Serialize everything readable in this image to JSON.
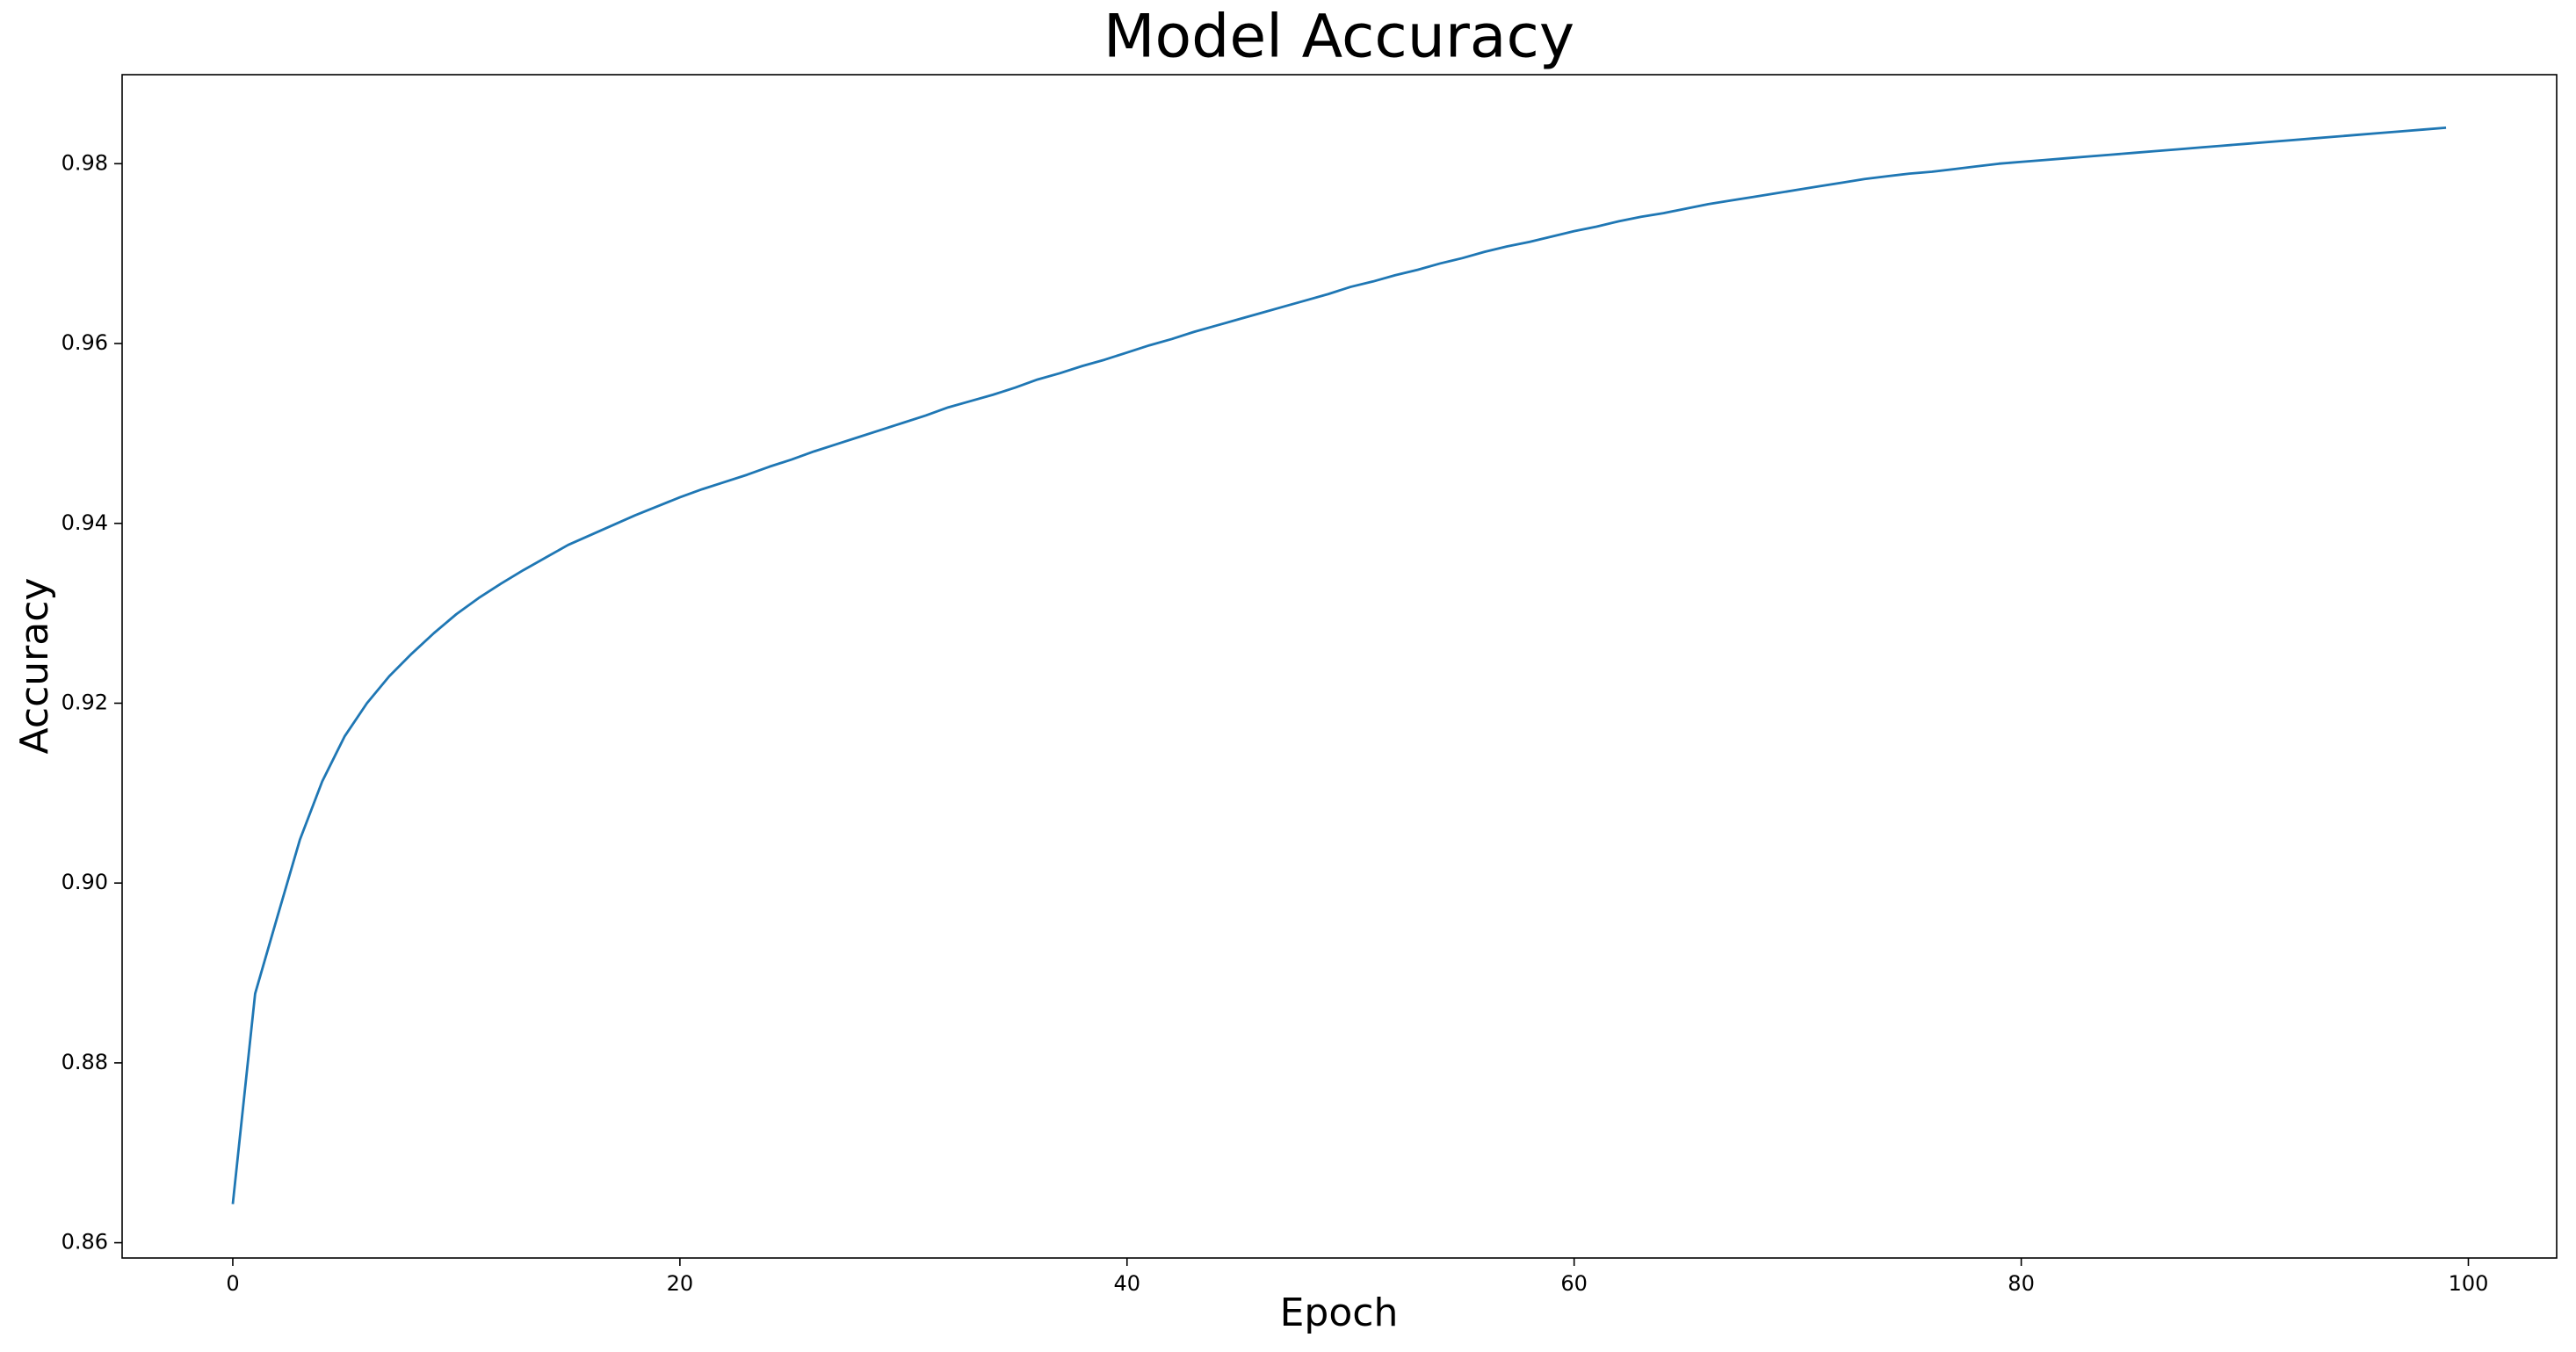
{
  "chart_data": {
    "type": "line",
    "title": "Model Accuracy",
    "xlabel": "Epoch",
    "ylabel": "Accuracy",
    "x": [
      0,
      1,
      2,
      3,
      4,
      5,
      6,
      7,
      8,
      9,
      10,
      11,
      12,
      13,
      14,
      15,
      16,
      17,
      18,
      19,
      20,
      21,
      22,
      23,
      24,
      25,
      26,
      27,
      28,
      29,
      30,
      31,
      32,
      33,
      34,
      35,
      36,
      37,
      38,
      39,
      40,
      41,
      42,
      43,
      44,
      45,
      46,
      47,
      48,
      49,
      50,
      51,
      52,
      53,
      54,
      55,
      56,
      57,
      58,
      59,
      60,
      61,
      62,
      63,
      64,
      65,
      66,
      67,
      68,
      69,
      70,
      71,
      72,
      73,
      74,
      75,
      76,
      77,
      78,
      79,
      80,
      81,
      82,
      83,
      84,
      85,
      86,
      87,
      88,
      89,
      90,
      91,
      92,
      93,
      94,
      95,
      96,
      97,
      98,
      99
    ],
    "series": [
      {
        "color": "#1f77b4",
        "values": [
          0.8643,
          0.8877,
          0.8963,
          0.9048,
          0.9113,
          0.9163,
          0.92,
          0.923,
          0.9255,
          0.9278,
          0.9299,
          0.9317,
          0.9333,
          0.9348,
          0.9362,
          0.9376,
          0.9387,
          0.9398,
          0.9409,
          0.9419,
          0.9429,
          0.9438,
          0.9446,
          0.9454,
          0.9463,
          0.9471,
          0.948,
          0.9488,
          0.9496,
          0.9504,
          0.9512,
          0.952,
          0.9529,
          0.9536,
          0.9543,
          0.9551,
          0.956,
          0.9567,
          0.9575,
          0.9582,
          0.959,
          0.9598,
          0.9605,
          0.9613,
          0.962,
          0.9627,
          0.9634,
          0.9641,
          0.9648,
          0.9655,
          0.9663,
          0.9669,
          0.9676,
          0.9682,
          0.9689,
          0.9695,
          0.9702,
          0.9708,
          0.9713,
          0.9719,
          0.9725,
          0.973,
          0.9736,
          0.9741,
          0.9745,
          0.975,
          0.9755,
          0.9759,
          0.9763,
          0.9767,
          0.9771,
          0.9775,
          0.9779,
          0.9783,
          0.9786,
          0.9789,
          0.9791,
          0.9794,
          0.9797,
          0.98,
          0.9802,
          0.9804,
          0.9806,
          0.9808,
          0.981,
          0.9812,
          0.9814,
          0.9816,
          0.9818,
          0.982,
          0.9822,
          0.9824,
          0.9826,
          0.9828,
          0.983,
          0.9832,
          0.9834,
          0.9836,
          0.9838,
          0.984
        ]
      }
    ],
    "xlim": [
      -4.95,
      103.95
    ],
    "xticks": [
      0,
      20,
      40,
      60,
      80,
      100
    ],
    "ylim": [
      0.8583,
      0.9899
    ],
    "yticks": [
      {
        "value": 0.86,
        "label": "0.86"
      },
      {
        "value": 0.88,
        "label": "0.88"
      },
      {
        "value": 0.9,
        "label": "0.90"
      },
      {
        "value": 0.92,
        "label": "0.92"
      },
      {
        "value": 0.94,
        "label": "0.94"
      },
      {
        "value": 0.96,
        "label": "0.96"
      },
      {
        "value": 0.98,
        "label": "0.98"
      }
    ],
    "grid": false
  }
}
